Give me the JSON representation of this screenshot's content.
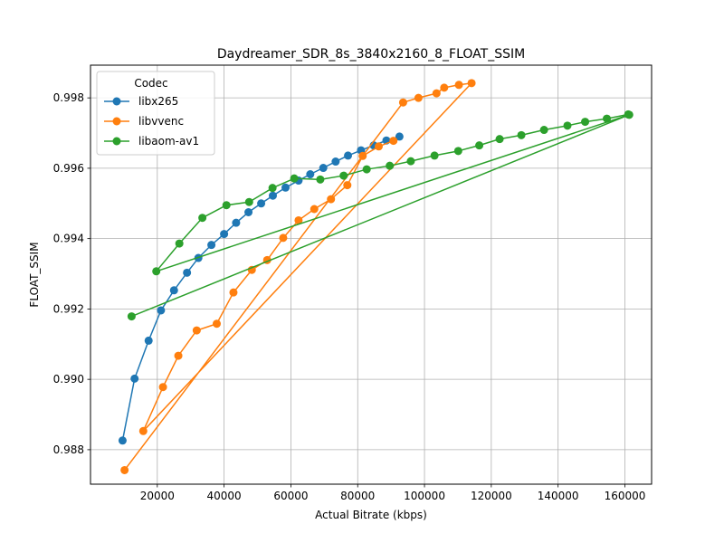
{
  "chart_data": {
    "type": "line",
    "title": "Daydreamer_SDR_8s_3840x2160_8_FLOAT_SSIM",
    "xlabel": "Actual Bitrate (kbps)",
    "ylabel": "FLOAT_SSIM",
    "xlim": [
      0,
      168000
    ],
    "ylim": [
      0.98702,
      0.99893
    ],
    "x_ticks": [
      20000,
      40000,
      60000,
      80000,
      100000,
      120000,
      140000,
      160000
    ],
    "x_tick_labels": [
      "20000",
      "40000",
      "60000",
      "80000",
      "100000",
      "120000",
      "140000",
      "160000"
    ],
    "y_ticks": [
      0.988,
      0.99,
      0.992,
      0.994,
      0.996,
      0.998
    ],
    "y_tick_labels": [
      "0.988",
      "0.990",
      "0.992",
      "0.994",
      "0.996",
      "0.998"
    ],
    "grid": true,
    "legend": {
      "title": "Codec",
      "placement": "top-left"
    },
    "series": [
      {
        "name": "libx265",
        "color": "#1f77b4",
        "points": [
          [
            9600,
            0.98826
          ],
          [
            13200,
            0.99002
          ],
          [
            17400,
            0.9911
          ],
          [
            21100,
            0.99196
          ],
          [
            25000,
            0.99253
          ],
          [
            28900,
            0.99303
          ],
          [
            32300,
            0.99345
          ],
          [
            36200,
            0.99382
          ],
          [
            40000,
            0.99413
          ],
          [
            43600,
            0.99445
          ],
          [
            47300,
            0.99475
          ],
          [
            51100,
            0.995
          ],
          [
            54600,
            0.99522
          ],
          [
            58400,
            0.99545
          ],
          [
            62300,
            0.99565
          ],
          [
            65800,
            0.99583
          ],
          [
            69700,
            0.99601
          ],
          [
            73400,
            0.99619
          ],
          [
            77100,
            0.99636
          ],
          [
            81000,
            0.99651
          ],
          [
            84800,
            0.99665
          ],
          [
            88600,
            0.99679
          ],
          [
            92500,
            0.9969
          ]
        ]
      },
      {
        "name": "libvvenc",
        "color": "#ff7f0e",
        "points": [
          [
            10200,
            0.98742
          ],
          [
            93600,
            0.99787
          ],
          [
            98200,
            0.998
          ],
          [
            103600,
            0.99813
          ],
          [
            105900,
            0.99829
          ],
          [
            110300,
            0.99837
          ],
          [
            114100,
            0.99842
          ],
          [
            15800,
            0.98853
          ],
          [
            21700,
            0.98978
          ],
          [
            26300,
            0.99067
          ],
          [
            31800,
            0.99139
          ],
          [
            37800,
            0.99158
          ],
          [
            42800,
            0.99247
          ],
          [
            48300,
            0.99311
          ],
          [
            52900,
            0.99339
          ],
          [
            57700,
            0.99402
          ],
          [
            62300,
            0.99452
          ],
          [
            67000,
            0.99484
          ],
          [
            72000,
            0.99512
          ],
          [
            76900,
            0.99552
          ],
          [
            81500,
            0.99635
          ],
          [
            86300,
            0.99662
          ],
          [
            90700,
            0.99678
          ]
        ]
      },
      {
        "name": "libaom-av1",
        "color": "#2ca02c",
        "points": [
          [
            12300,
            0.99179
          ],
          [
            161300,
            0.99752
          ],
          [
            19700,
            0.99307
          ],
          [
            26600,
            0.99386
          ],
          [
            33500,
            0.99459
          ],
          [
            40700,
            0.99495
          ],
          [
            47500,
            0.99504
          ],
          [
            54500,
            0.99544
          ],
          [
            61000,
            0.99571
          ],
          [
            68800,
            0.99568
          ],
          [
            75800,
            0.99579
          ],
          [
            82700,
            0.99597
          ],
          [
            89600,
            0.99607
          ],
          [
            95900,
            0.9962
          ],
          [
            103000,
            0.99636
          ],
          [
            110100,
            0.99649
          ],
          [
            116400,
            0.99665
          ],
          [
            122500,
            0.99683
          ],
          [
            129000,
            0.99694
          ],
          [
            135800,
            0.99709
          ],
          [
            142800,
            0.99721
          ],
          [
            148100,
            0.99732
          ],
          [
            154600,
            0.99741
          ],
          [
            161000,
            0.99753
          ]
        ]
      }
    ]
  }
}
